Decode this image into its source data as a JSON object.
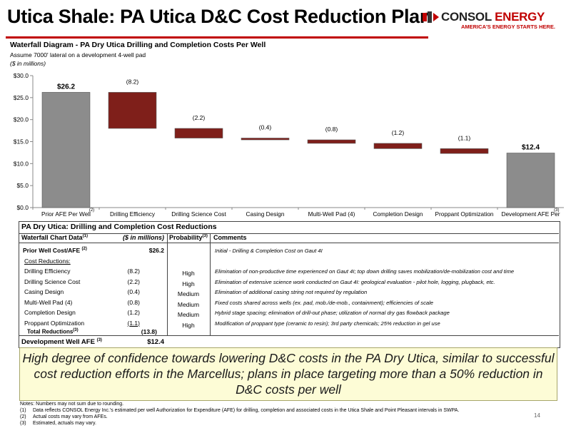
{
  "header": {
    "title": "Utica Shale: PA Utica D&C Cost Reduction Plan",
    "logo": {
      "name_part1": "CONSOL",
      "name_part2": "ENERGY",
      "tagline": "AMERICA'S ENERGY STARTS HERE.",
      "icon": "consol-flame-icon"
    }
  },
  "chart_heading": {
    "title": "Waterfall Diagram - PA Dry Utica Drilling and Completion Costs Per Well",
    "subtitle": "Assume 7000' lateral on a development 4-well pad",
    "units": "($ in millions)"
  },
  "chart_data": {
    "type": "bar",
    "subtype": "waterfall",
    "categories": [
      "Prior AFE Per Well",
      "Drilling Efficiency",
      "Drilling Science Cost",
      "Casing Design",
      "Multi-Well Pad (4)",
      "Completion Design",
      "Proppant Optimization",
      "Development AFE Per"
    ],
    "category_footnotes": [
      "(2)",
      "",
      "",
      "",
      "",
      "",
      "",
      "(3)"
    ],
    "values": [
      26.2,
      -8.2,
      -2.2,
      -0.4,
      -0.8,
      -1.2,
      -1.1,
      12.4
    ],
    "bar_kind": [
      "total",
      "decrease",
      "decrease",
      "decrease",
      "decrease",
      "decrease",
      "decrease",
      "total"
    ],
    "data_labels": [
      "$26.2",
      "(8.2)",
      "(2.2)",
      "(0.4)",
      "(0.8)",
      "(1.2)",
      "(1.1)",
      "$12.4"
    ],
    "ylim": [
      0,
      30
    ],
    "yticks": [
      0,
      5,
      10,
      15,
      20,
      25,
      30
    ],
    "ytick_labels": [
      "$0.0",
      "$5.0",
      "$10.0",
      "$15.0",
      "$20.0",
      "$25.0",
      "$30.0"
    ],
    "grid": false,
    "colors": {
      "total": "#8c8c8c",
      "decrease": "#7f1f1a",
      "axis": "#888888"
    }
  },
  "table": {
    "title": "PA Dry Utica: Drilling and Completion Cost Reductions",
    "headers": {
      "item": "Waterfall Chart Data",
      "item_sup": "(1)",
      "value": "($ in millions)",
      "prob": "Probability",
      "prob_sup": "(3)",
      "comments": "Comments"
    },
    "prior": {
      "label": "Prior Well Cost/AFE",
      "sup": "(2)",
      "value": "$26.2",
      "comment": "Initial - Drilling & Completion Cost on Gaut 4I"
    },
    "section_label": "Cost Reductions:",
    "rows": [
      {
        "label": "Drilling Efficiency",
        "value": "(8.2)",
        "prob": "High",
        "comment": "Elimination of non-productive time experienced on Gaut 4I; top down drilling saves mobilization/de-mobilization cost and time"
      },
      {
        "label": "Drilling Science Cost",
        "value": "(2.2)",
        "prob": "High",
        "comment": "Elimination of extensive science work conducted on Gaut 4I: geological evaluation - pilot hole, logging, plugback, etc."
      },
      {
        "label": "Casing Design",
        "value": "(0.4)",
        "prob": "Medium",
        "comment": "Elimination of additional casing string not required by regulation"
      },
      {
        "label": "Multi-Well Pad (4)",
        "value": "(0.8)",
        "prob": "Medium",
        "comment": "Fixed costs shared across wells (ex. pad, mob./de-mob., containment); efficiencies of scale"
      },
      {
        "label": "Completion Design",
        "value": "(1.2)",
        "prob": "Medium",
        "comment": "Hybrid stage spacing; elimination of drill-out phase; utilization of normal dry gas flowback package"
      },
      {
        "label": "Proppant Optimization",
        "value": "(1.1)",
        "prob": "High",
        "comment": "Modification of proppant type (ceramic to resin); 3rd party chemicals; 25% reduction in gel use"
      }
    ],
    "total": {
      "label": "Total Reductions",
      "sup": "(3)",
      "value": "(13.8)"
    },
    "development": {
      "label": "Development Well AFE",
      "sup": "(3)",
      "value": "$12.4"
    }
  },
  "callout": {
    "text": "High degree of confidence towards lowering D&C costs in the PA Dry Utica, similar to successful cost reduction efforts in the Marcellus; plans in place targeting more than a 50% reduction in D&C costs per well",
    "bg_color": "#fdfcd6"
  },
  "notes": {
    "heading": "Notes: Numbers may not sum due to rounding.",
    "items": [
      {
        "n": "(1)",
        "text": "Data reflects CONSOL Energy Inc.'s estimated per well Authorization for Expenditure (AFE) for drilling, completion and associated costs in the Utica Shale and Point Pleasant intervals in SWPA."
      },
      {
        "n": "(2)",
        "text": "Actual costs may vary from AFEs."
      },
      {
        "n": "(3)",
        "text": "Estimated, actuals may vary."
      }
    ]
  },
  "page_number": "14"
}
